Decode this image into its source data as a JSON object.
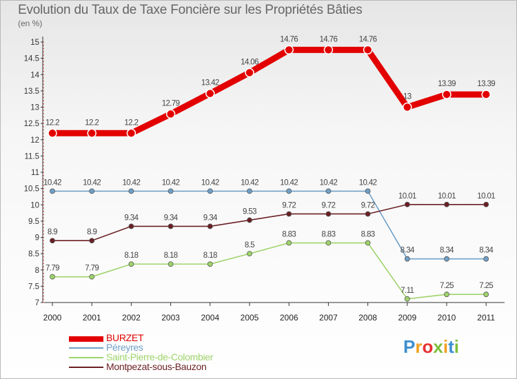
{
  "title": "Evolution du Taux de Taxe Foncière sur les Propriétés Bâties",
  "subtitle": "(en %)",
  "chart_data": {
    "type": "line",
    "title": "Evolution du Taux de Taxe Foncière sur les Propriétés Bâties",
    "ylabel": "(en %)",
    "xlabel": "",
    "x": [
      "2000",
      "2001",
      "2002",
      "2003",
      "2004",
      "2005",
      "2006",
      "2007",
      "2008",
      "2009",
      "2010",
      "2011"
    ],
    "ylim": [
      7,
      15
    ],
    "yticks": [
      "7",
      "7.5",
      "8",
      "8.5",
      "9",
      "9.5",
      "10",
      "10.5",
      "11",
      "11.5",
      "12",
      "12.5",
      "13",
      "13.5",
      "14",
      "14.5",
      "15"
    ],
    "legend_position": "bottom-left",
    "series": [
      {
        "name": "BURZET",
        "color": "#e30000",
        "values": [
          12.2,
          12.2,
          12.2,
          12.79,
          13.42,
          14.06,
          14.76,
          14.76,
          14.76,
          13,
          13.39,
          13.39
        ],
        "labels": [
          "12.2",
          "12.2",
          "12.2",
          "12.79",
          "13.42",
          "14.06",
          "14.76",
          "14.76",
          "14.76",
          "13",
          "13.39",
          "13.39"
        ]
      },
      {
        "name": "Péreyres",
        "color": "#6fa0c8",
        "values": [
          10.42,
          10.42,
          10.42,
          10.42,
          10.42,
          10.42,
          10.42,
          10.42,
          10.42,
          8.34,
          8.34,
          8.34
        ],
        "labels": [
          "10.42",
          "10.42",
          "10.42",
          "10.42",
          "10.42",
          "10.42",
          "10.42",
          "10.42",
          "10.42",
          "8.34",
          "8.34",
          "8.34"
        ]
      },
      {
        "name": "Saint-Pierre-de-Colombier",
        "color": "#9ed36a",
        "values": [
          7.79,
          7.79,
          8.18,
          8.18,
          8.18,
          8.5,
          8.83,
          8.83,
          8.83,
          7.11,
          7.25,
          7.25
        ],
        "labels": [
          "7.79",
          "7.79",
          "8.18",
          "8.18",
          "8.18",
          "8.5",
          "8.83",
          "8.83",
          "8.83",
          "7.11",
          "7.25",
          "7.25"
        ]
      },
      {
        "name": "Montpezat-sous-Bauzon",
        "color": "#6a1f24",
        "values": [
          8.9,
          8.9,
          9.34,
          9.34,
          9.34,
          9.53,
          9.72,
          9.72,
          9.72,
          10.01,
          10.01,
          10.01
        ],
        "labels": [
          "8.9",
          "8.9",
          "9.34",
          "9.34",
          "9.34",
          "9.53",
          "9.72",
          "9.72",
          "9.72",
          "10.01",
          "10.01",
          "10.01"
        ]
      }
    ]
  },
  "logo": {
    "letters": [
      "P",
      "r",
      "o",
      "x",
      "i",
      "t",
      "i"
    ],
    "colors": [
      "#3b8fd0",
      "#f0a020",
      "#e63030",
      "#7cbf3a",
      "#f0a020",
      "#3b8fd0",
      "#7cbf3a"
    ]
  }
}
